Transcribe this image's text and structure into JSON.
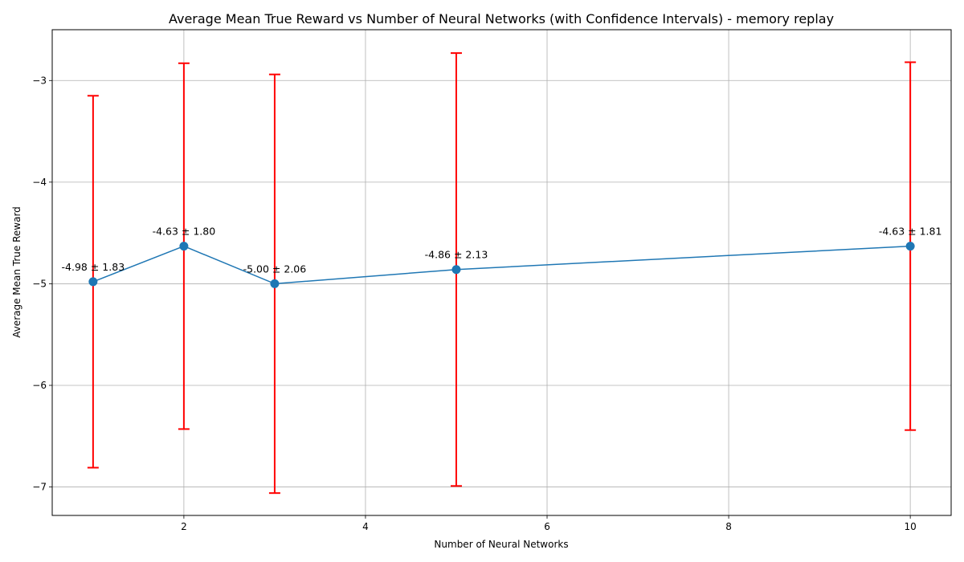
{
  "chart_data": {
    "type": "line",
    "title": "Average Mean True Reward vs Number of Neural Networks (with Confidence Intervals) - memory replay",
    "xlabel": "Number of Neural Networks",
    "ylabel": "Average Mean True Reward",
    "x": [
      1,
      2,
      3,
      5,
      10
    ],
    "y": [
      -4.98,
      -4.63,
      -5.0,
      -4.86,
      -4.63
    ],
    "ci": [
      1.83,
      1.8,
      2.06,
      2.13,
      1.81
    ],
    "annotations": [
      "-4.98 ± 1.83",
      "-4.63 ± 1.80",
      "-5.00 ± 2.06",
      "-4.86 ± 2.13",
      "-4.63 ± 1.81"
    ],
    "xticks": [
      "2",
      "4",
      "6",
      "8",
      "10"
    ],
    "yticks": [
      "−3",
      "−4",
      "−5",
      "−6",
      "−7"
    ],
    "xtick_values": [
      2,
      4,
      6,
      8,
      10
    ],
    "ytick_values": [
      -3,
      -4,
      -5,
      -6,
      -7
    ],
    "xlim": [
      0.55,
      10.45
    ],
    "ylim": [
      -7.28,
      -2.5
    ],
    "grid": true,
    "colors": {
      "line": "#1f77b4",
      "errorbar": "#ff0000",
      "grid": "#b0b0b0"
    }
  }
}
